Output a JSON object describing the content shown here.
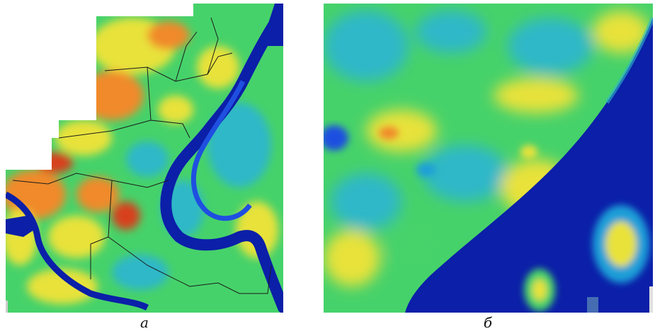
{
  "figure": {
    "panels": [
      {
        "id": "a",
        "caption": "а",
        "description_type": "city-scale heat map over river"
      },
      {
        "id": "b",
        "caption": "б",
        "description_type": "zoomed heat map along river bank"
      }
    ],
    "colors": {
      "water": "#0b1fa8",
      "water_light": "#1f4fe0",
      "cool": "#2fb8c8",
      "mid": "#46d26a",
      "warm": "#e8e23a",
      "hot": "#f08a2a",
      "hottest": "#d8401e",
      "boundary": "#1b1b1b"
    }
  }
}
